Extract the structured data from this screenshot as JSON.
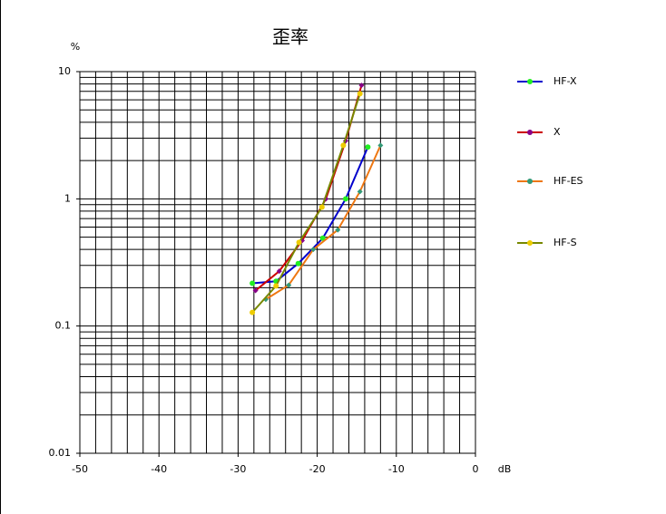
{
  "chart_data": {
    "type": "line",
    "title": "歪率",
    "y_label": "%",
    "x_label": "dB",
    "xlim": [
      -50,
      0
    ],
    "xticks": [
      -50,
      -40,
      -30,
      -20,
      -10,
      0
    ],
    "ylim": [
      0.01,
      10
    ],
    "yticks": [
      0.01,
      0.1,
      1,
      10
    ],
    "log_y": true,
    "grid": true,
    "legend": "right",
    "series": [
      {
        "name": "HF-X",
        "color": "#0000cc",
        "marker_color": "#22ee22",
        "x": [
          -28.2,
          -25.2,
          -22.4,
          -19.3,
          -16.4,
          -13.6
        ],
        "values": [
          0.217,
          0.225,
          0.31,
          0.49,
          1.0,
          2.55
        ]
      },
      {
        "name": "X",
        "color": "#cc0000",
        "marker_color": "#880088",
        "x": [
          -27.8,
          -24.8,
          -21.9,
          -18.9,
          -16.4,
          -14.4
        ],
        "values": [
          0.19,
          0.27,
          0.47,
          1.0,
          2.86,
          7.8
        ]
      },
      {
        "name": "HF-ES",
        "color": "#ee7711",
        "marker_color": "#339977",
        "x": [
          -26.5,
          -23.6,
          -20.5,
          -17.4,
          -14.6,
          -12.0
        ],
        "values": [
          0.162,
          0.21,
          0.4,
          0.57,
          1.14,
          2.63
        ]
      },
      {
        "name": "HF-S",
        "color": "#778800",
        "marker_color": "#eecc00",
        "x": [
          -28.2,
          -25.2,
          -22.3,
          -19.4,
          -16.7,
          -14.6
        ],
        "values": [
          0.128,
          0.207,
          0.455,
          0.86,
          2.63,
          6.7
        ]
      }
    ]
  }
}
